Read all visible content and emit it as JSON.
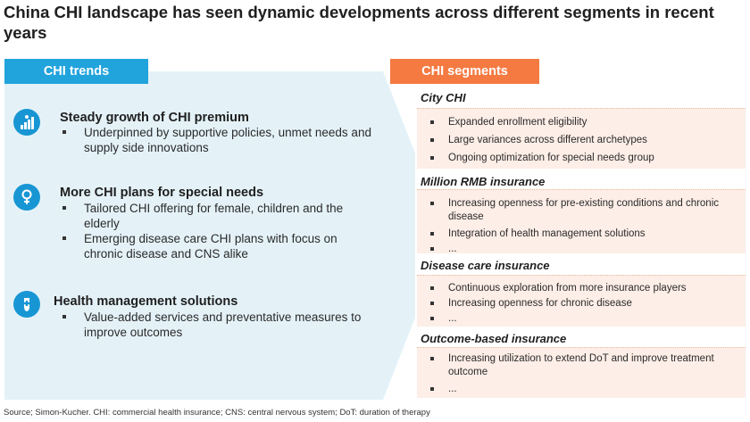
{
  "title": "China CHI landscape has seen dynamic developments across different segments in recent years",
  "left_panel": {
    "label": "CHI trends",
    "trends": [
      {
        "icon": "growth-chart-icon",
        "heading": "Steady growth of CHI premium",
        "bullets": [
          "Underpinned by supportive policies, unmet needs and supply side innovations"
        ]
      },
      {
        "icon": "female-symbol-icon",
        "heading": "More CHI plans for special needs",
        "bullets": [
          "Tailored CHI offering for female, children and the elderly",
          "Emerging disease care CHI plans with focus on chronic disease and CNS alike"
        ]
      },
      {
        "icon": "hand-shield-icon",
        "heading": "Health management solutions",
        "bullets": [
          "Value-added services and preventative measures to improve outcomes"
        ]
      }
    ]
  },
  "right_panel": {
    "label": "CHI segments",
    "segments": [
      {
        "title": "City CHI",
        "items": [
          "Expanded enrollment eligibility",
          "Large variances across different archetypes",
          "Ongoing optimization for special needs group"
        ]
      },
      {
        "title": "Million RMB insurance",
        "items": [
          "Increasing openness for pre-existing conditions and chronic disease",
          "Integration of health management solutions",
          "..."
        ]
      },
      {
        "title": "Disease care insurance",
        "items": [
          "Continuous exploration from more insurance players",
          "Increasing openness for chronic disease",
          "..."
        ]
      },
      {
        "title": "Outcome-based insurance",
        "items": [
          "Increasing utilization to extend DoT and improve treatment outcome",
          "..."
        ]
      }
    ]
  },
  "footer": "Source; Simon-Kucher. CHI: commercial health insurance; CNS: central nervous system; DoT: duration of therapy",
  "colors": {
    "trends_accent": "#21a3dc",
    "segments_accent": "#f47a42",
    "trends_bg": "#e4f2f8",
    "segments_bg": "#fdeee7"
  }
}
